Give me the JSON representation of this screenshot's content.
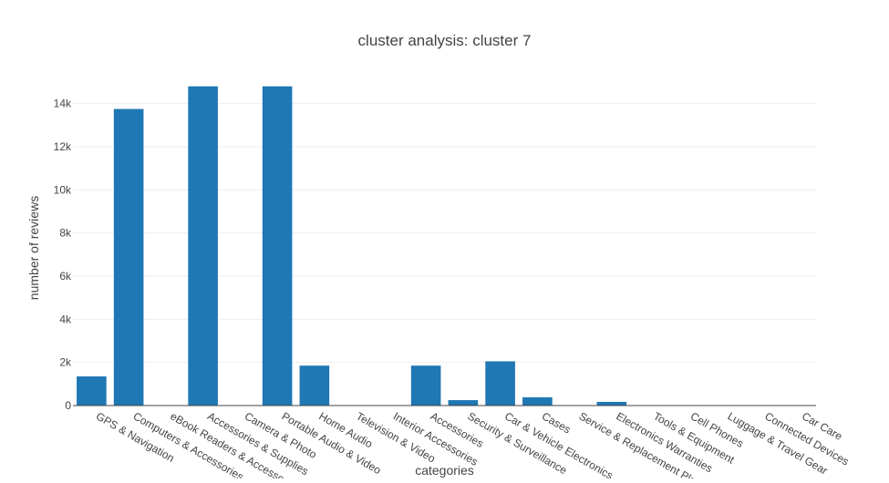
{
  "chart_data": {
    "type": "bar",
    "title": "cluster analysis: cluster 7",
    "xlabel": "categories",
    "ylabel": "number of reviews",
    "ylim": [
      0,
      15000
    ],
    "yticks": [
      0,
      2000,
      4000,
      6000,
      8000,
      10000,
      12000,
      14000
    ],
    "ytick_labels": [
      "0",
      "2k",
      "4k",
      "6k",
      "8k",
      "10k",
      "12k",
      "14k"
    ],
    "grid": true,
    "bar_color": "#1f77b4",
    "categories": [
      "GPS & Navigation",
      "Computers & Accessories",
      "eBook Readers & Accessories",
      "Accessories & Supplies",
      "Camera & Photo",
      "Portable Audio & Video",
      "Home Audio",
      "Television & Video",
      "Interior Accessories",
      "Accessories",
      "Security & Surveillance",
      "Car & Vehicle Electronics",
      "Cases",
      "Service & Replacement Plans",
      "Electronics Warranties",
      "Tools & Equipment",
      "Cell Phones",
      "Luggage & Travel Gear",
      "Connected Devices",
      "Car Care"
    ],
    "values": [
      1350,
      13750,
      0,
      14800,
      0,
      14800,
      1850,
      0,
      0,
      1850,
      250,
      2050,
      380,
      20,
      170,
      0,
      0,
      0,
      0,
      0
    ]
  }
}
